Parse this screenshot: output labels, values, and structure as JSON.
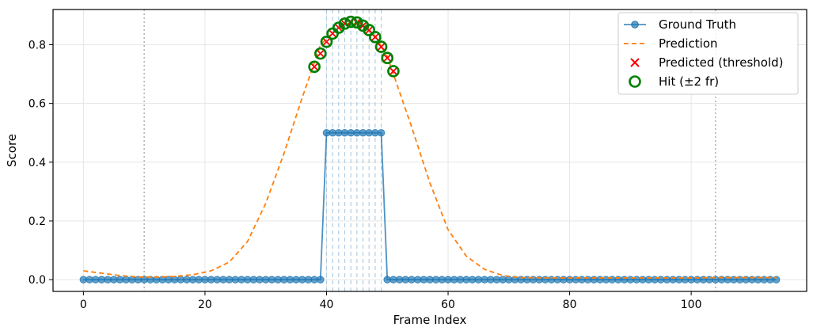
{
  "chart_data": {
    "type": "line",
    "xlabel": "Frame Index",
    "ylabel": "Score",
    "xlim": [
      -5,
      119
    ],
    "ylim": [
      -0.04,
      0.92
    ],
    "xticks": [
      0,
      20,
      40,
      60,
      80,
      100
    ],
    "yticks": [
      0.0,
      0.2,
      0.4,
      0.6,
      0.8
    ],
    "grid": true,
    "legend_position": "top-right",
    "boundary_lines_x": [
      10,
      104
    ],
    "gt_window_lines_x": [
      40,
      41,
      42,
      43,
      44,
      45,
      46,
      47,
      48,
      49
    ],
    "colors": {
      "ground_truth": "#1f77b4",
      "prediction": "#ff7f0e",
      "predicted": "#ff0000",
      "hit": "#008000",
      "boundary": "#b0b0b0",
      "window": "#a9c8de"
    },
    "series": [
      {
        "name": "Ground Truth",
        "x": [
          0,
          1,
          2,
          3,
          4,
          5,
          6,
          7,
          8,
          9,
          10,
          11,
          12,
          13,
          14,
          15,
          16,
          17,
          18,
          19,
          20,
          21,
          22,
          23,
          24,
          25,
          26,
          27,
          28,
          29,
          30,
          31,
          32,
          33,
          34,
          35,
          36,
          37,
          38,
          39,
          40,
          41,
          42,
          43,
          44,
          45,
          46,
          47,
          48,
          49,
          50,
          51,
          52,
          53,
          54,
          55,
          56,
          57,
          58,
          59,
          60,
          61,
          62,
          63,
          64,
          65,
          66,
          67,
          68,
          69,
          70,
          71,
          72,
          73,
          74,
          75,
          76,
          77,
          78,
          79,
          80,
          81,
          82,
          83,
          84,
          85,
          86,
          87,
          88,
          89,
          90,
          91,
          92,
          93,
          94,
          95,
          96,
          97,
          98,
          99,
          100,
          101,
          102,
          103,
          104,
          105,
          106,
          107,
          108,
          109,
          110,
          111,
          112,
          113,
          114
        ],
        "y": [
          0,
          0,
          0,
          0,
          0,
          0,
          0,
          0,
          0,
          0,
          0,
          0,
          0,
          0,
          0,
          0,
          0,
          0,
          0,
          0,
          0,
          0,
          0,
          0,
          0,
          0,
          0,
          0,
          0,
          0,
          0,
          0,
          0,
          0,
          0,
          0,
          0,
          0,
          0,
          0,
          0.5,
          0.5,
          0.5,
          0.5,
          0.5,
          0.5,
          0.5,
          0.5,
          0.5,
          0.5,
          0,
          0,
          0,
          0,
          0,
          0,
          0,
          0,
          0,
          0,
          0,
          0,
          0,
          0,
          0,
          0,
          0,
          0,
          0,
          0,
          0,
          0,
          0,
          0,
          0,
          0,
          0,
          0,
          0,
          0,
          0,
          0,
          0,
          0,
          0,
          0,
          0,
          0,
          0,
          0,
          0,
          0,
          0,
          0,
          0,
          0,
          0,
          0,
          0,
          0,
          0,
          0,
          0,
          0,
          0,
          0,
          0,
          0,
          0,
          0,
          0,
          0,
          0,
          0,
          0
        ]
      },
      {
        "name": "Prediction",
        "x": [
          0,
          3,
          6,
          9,
          12,
          15,
          18,
          21,
          24,
          27,
          30,
          33,
          36,
          39,
          42,
          44,
          46,
          48,
          50,
          52,
          54,
          57,
          60,
          63,
          66,
          69,
          72,
          76,
          80,
          85,
          90,
          95,
          100,
          105,
          110,
          114
        ],
        "y": [
          0.03,
          0.022,
          0.014,
          0.009,
          0.009,
          0.011,
          0.017,
          0.03,
          0.06,
          0.13,
          0.26,
          0.43,
          0.62,
          0.8,
          0.86,
          0.875,
          0.865,
          0.83,
          0.76,
          0.64,
          0.52,
          0.33,
          0.17,
          0.08,
          0.035,
          0.014,
          0.007,
          0.006,
          0.006,
          0.006,
          0.006,
          0.006,
          0.006,
          0.007,
          0.007,
          0.007
        ]
      },
      {
        "name": "Predicted (threshold)",
        "x": [
          38,
          39,
          40,
          41,
          42,
          43,
          44,
          45,
          46,
          47,
          48,
          49,
          50,
          51
        ],
        "y": [
          0.725,
          0.77,
          0.81,
          0.838,
          0.858,
          0.872,
          0.878,
          0.876,
          0.865,
          0.85,
          0.826,
          0.793,
          0.755,
          0.71
        ]
      },
      {
        "name": "Hit (±2 fr)",
        "x": [
          38,
          39,
          40,
          41,
          42,
          43,
          44,
          45,
          46,
          47,
          48,
          49,
          50,
          51
        ],
        "y": [
          0.725,
          0.77,
          0.81,
          0.838,
          0.858,
          0.872,
          0.878,
          0.876,
          0.865,
          0.85,
          0.826,
          0.793,
          0.755,
          0.71
        ]
      }
    ]
  }
}
